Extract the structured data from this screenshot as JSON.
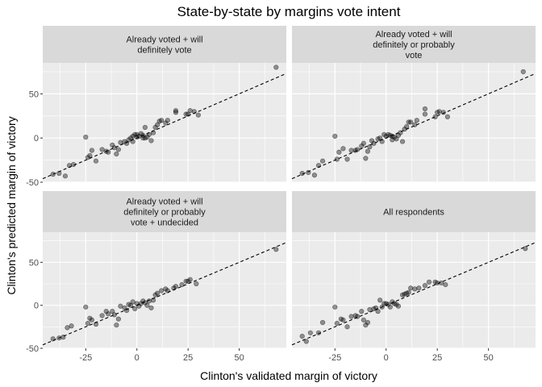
{
  "chart_data": {
    "type": "scatter",
    "title": "State-by-state by margins vote intent",
    "xlabel": "Clinton's validated margin of victory",
    "ylabel": "Clinton's predicted margin of victory",
    "xlim": [
      -46,
      73
    ],
    "ylim": [
      -50,
      85
    ],
    "x_ticks": [
      -25,
      0,
      25,
      50
    ],
    "x_tick_labels": [
      "-25",
      "0",
      "25",
      "50"
    ],
    "y_ticks": [
      -50,
      0,
      50
    ],
    "y_tick_labels": [
      "-50",
      "0",
      "50"
    ],
    "reference_line": {
      "style": "dashed",
      "slope": 1,
      "intercept": 0
    },
    "grid": true,
    "layout": "2x2 facets",
    "point_color": "#000000",
    "point_opacity": 0.4,
    "panel_background": "#ebebeb",
    "strip_background": "#d9d9d9",
    "panels": [
      {
        "label_lines": [
          "Already voted + will",
          "definitely vote"
        ],
        "points": [
          [
            -41,
            -41
          ],
          [
            -38,
            -40
          ],
          [
            -35,
            -43
          ],
          [
            -33,
            -31
          ],
          [
            -31,
            -30
          ],
          [
            -25,
            1
          ],
          [
            -24,
            -22
          ],
          [
            -23,
            -20
          ],
          [
            -22,
            -14
          ],
          [
            -20,
            -26
          ],
          [
            -17,
            -13
          ],
          [
            -15,
            -15
          ],
          [
            -14,
            -16
          ],
          [
            -12,
            -8
          ],
          [
            -11,
            -11
          ],
          [
            -10,
            -18
          ],
          [
            -9,
            -13
          ],
          [
            -8,
            -5
          ],
          [
            -6,
            -4
          ],
          [
            -5,
            -6
          ],
          [
            -4,
            -2
          ],
          [
            -3,
            0
          ],
          [
            -2,
            2
          ],
          [
            -2,
            -4
          ],
          [
            -1,
            4
          ],
          [
            0,
            4
          ],
          [
            0,
            1
          ],
          [
            1,
            2
          ],
          [
            2,
            5
          ],
          [
            3,
            3
          ],
          [
            3,
            0
          ],
          [
            4,
            0
          ],
          [
            4,
            12
          ],
          [
            5,
            1
          ],
          [
            6,
            4
          ],
          [
            7,
            -3
          ],
          [
            8,
            6
          ],
          [
            9,
            12
          ],
          [
            10,
            15
          ],
          [
            11,
            19
          ],
          [
            12,
            20
          ],
          [
            14,
            17
          ],
          [
            15,
            20
          ],
          [
            19,
            29
          ],
          [
            19,
            31
          ],
          [
            24,
            27
          ],
          [
            25,
            27
          ],
          [
            26,
            31
          ],
          [
            28,
            30
          ],
          [
            30,
            26
          ],
          [
            68,
            80
          ]
        ]
      },
      {
        "label_lines": [
          "Already voted + will",
          "definitely or probably",
          "vote"
        ],
        "points": [
          [
            -41,
            -40
          ],
          [
            -38,
            -39
          ],
          [
            -35,
            -42
          ],
          [
            -33,
            -31
          ],
          [
            -31,
            -26
          ],
          [
            -25,
            2
          ],
          [
            -24,
            -24
          ],
          [
            -23,
            -16
          ],
          [
            -21,
            -12
          ],
          [
            -19,
            -24
          ],
          [
            -17,
            -14
          ],
          [
            -15,
            -14
          ],
          [
            -14,
            -13
          ],
          [
            -12,
            -9
          ],
          [
            -11,
            -6
          ],
          [
            -10,
            -23
          ],
          [
            -9,
            -15
          ],
          [
            -8,
            -10
          ],
          [
            -7,
            -3
          ],
          [
            -6,
            -6
          ],
          [
            -4,
            -1
          ],
          [
            -3,
            0
          ],
          [
            -2,
            -4
          ],
          [
            -1,
            4
          ],
          [
            0,
            2
          ],
          [
            1,
            4
          ],
          [
            2,
            3
          ],
          [
            3,
            2
          ],
          [
            3,
            -2
          ],
          [
            4,
            1
          ],
          [
            5,
            -1
          ],
          [
            6,
            3
          ],
          [
            7,
            6
          ],
          [
            8,
            -4
          ],
          [
            9,
            10
          ],
          [
            10,
            13
          ],
          [
            11,
            18
          ],
          [
            12,
            18
          ],
          [
            14,
            15
          ],
          [
            15,
            20
          ],
          [
            19,
            27
          ],
          [
            19,
            33
          ],
          [
            24,
            24
          ],
          [
            25,
            29
          ],
          [
            26,
            30
          ],
          [
            28,
            29
          ],
          [
            30,
            24
          ],
          [
            67,
            75
          ]
        ]
      },
      {
        "label_lines": [
          "Already voted + will",
          "definitely or probably",
          "vote + undecided"
        ],
        "points": [
          [
            -41,
            -39
          ],
          [
            -38,
            -38
          ],
          [
            -36,
            -37
          ],
          [
            -34,
            -26
          ],
          [
            -32,
            -24
          ],
          [
            -25,
            -2
          ],
          [
            -24,
            -21
          ],
          [
            -23,
            -15
          ],
          [
            -22,
            -17
          ],
          [
            -20,
            -22
          ],
          [
            -17,
            -12
          ],
          [
            -15,
            -7
          ],
          [
            -14,
            -10
          ],
          [
            -12,
            -7
          ],
          [
            -11,
            -11
          ],
          [
            -10,
            -23
          ],
          [
            -9,
            -16
          ],
          [
            -8,
            -1
          ],
          [
            -6,
            -3
          ],
          [
            -5,
            -6
          ],
          [
            -4,
            1
          ],
          [
            -3,
            0
          ],
          [
            -2,
            4
          ],
          [
            -1,
            -4
          ],
          [
            0,
            2
          ],
          [
            1,
            -1
          ],
          [
            2,
            2
          ],
          [
            3,
            5
          ],
          [
            4,
            3
          ],
          [
            5,
            0
          ],
          [
            6,
            5
          ],
          [
            7,
            -3
          ],
          [
            8,
            6
          ],
          [
            9,
            12
          ],
          [
            10,
            14
          ],
          [
            12,
            17
          ],
          [
            14,
            19
          ],
          [
            15,
            17
          ],
          [
            18,
            20
          ],
          [
            19,
            22
          ],
          [
            22,
            24
          ],
          [
            24,
            28
          ],
          [
            25,
            28
          ],
          [
            26,
            30
          ],
          [
            29,
            25
          ],
          [
            68,
            65
          ]
        ]
      },
      {
        "label_lines": [
          "All respondents"
        ],
        "points": [
          [
            -41,
            -36
          ],
          [
            -39,
            -42
          ],
          [
            -37,
            -32
          ],
          [
            -33,
            -32
          ],
          [
            -31,
            -20
          ],
          [
            -25,
            -2
          ],
          [
            -24,
            -21
          ],
          [
            -22,
            -16
          ],
          [
            -21,
            -17
          ],
          [
            -19,
            -25
          ],
          [
            -17,
            -13
          ],
          [
            -15,
            -12
          ],
          [
            -14,
            -13
          ],
          [
            -12,
            -7
          ],
          [
            -11,
            -17
          ],
          [
            -10,
            -23
          ],
          [
            -9,
            -20
          ],
          [
            -8,
            -5
          ],
          [
            -6,
            -4
          ],
          [
            -5,
            -3
          ],
          [
            -4,
            -7
          ],
          [
            -3,
            6
          ],
          [
            -2,
            -2
          ],
          [
            -1,
            2
          ],
          [
            0,
            2
          ],
          [
            1,
            1
          ],
          [
            2,
            -2
          ],
          [
            3,
            4
          ],
          [
            4,
            2
          ],
          [
            5,
            1
          ],
          [
            6,
            -1
          ],
          [
            8,
            12
          ],
          [
            9,
            13
          ],
          [
            10,
            14
          ],
          [
            11,
            15
          ],
          [
            12,
            20
          ],
          [
            14,
            19
          ],
          [
            16,
            20
          ],
          [
            19,
            23
          ],
          [
            21,
            27
          ],
          [
            24,
            27
          ],
          [
            25,
            26
          ],
          [
            27,
            26
          ],
          [
            29,
            24
          ],
          [
            68,
            66
          ]
        ]
      }
    ]
  }
}
